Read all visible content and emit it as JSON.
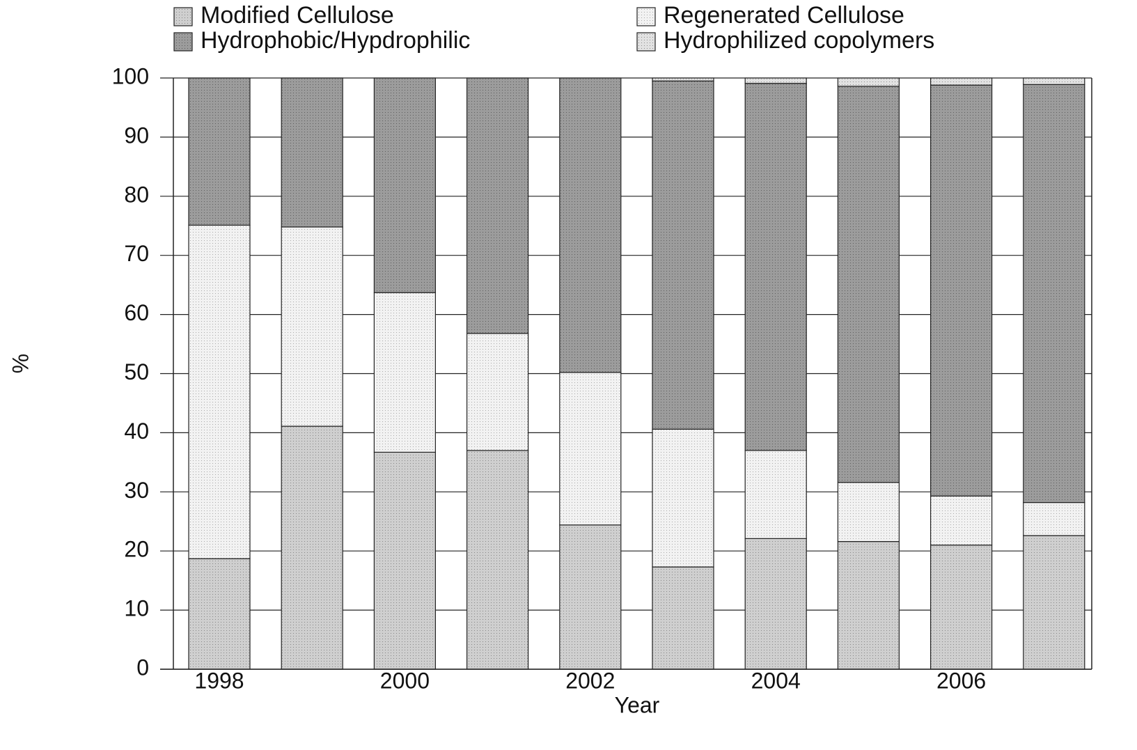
{
  "chart_data": {
    "type": "bar",
    "stacked": true,
    "grid": true,
    "x_label": "Year",
    "y_label": "%",
    "categories": [
      "1998",
      null,
      "2000",
      null,
      "2002",
      null,
      "2004",
      null,
      "2006",
      null
    ],
    "series": [
      {
        "name": "Modified Cellulose",
        "color": "#cfcfcf",
        "values": [
          18.7,
          41.1,
          36.7,
          37.0,
          24.4,
          17.3,
          22.1,
          21.6,
          21.0,
          22.6
        ]
      },
      {
        "name": "Regenerated Cellulose",
        "color": "#f2f2f2",
        "values": [
          56.4,
          33.7,
          27.0,
          19.8,
          25.8,
          23.3,
          14.9,
          10.0,
          8.3,
          5.6
        ]
      },
      {
        "name": "Hydrophobic/Hypdrophilic",
        "color": "#9c9c9c",
        "values": [
          24.9,
          25.2,
          36.3,
          43.2,
          49.8,
          58.9,
          62.1,
          67.0,
          69.5,
          70.7
        ]
      },
      {
        "name": "Hydrophilized copolymers",
        "color": "#e2e2e2",
        "values": [
          0,
          0,
          0,
          0,
          0,
          0.5,
          0.9,
          1.4,
          1.2,
          1.1
        ]
      }
    ],
    "ylim": [
      0,
      100
    ],
    "yticks": [
      0,
      10,
      20,
      30,
      40,
      50,
      60,
      70,
      80,
      90,
      100
    ]
  }
}
